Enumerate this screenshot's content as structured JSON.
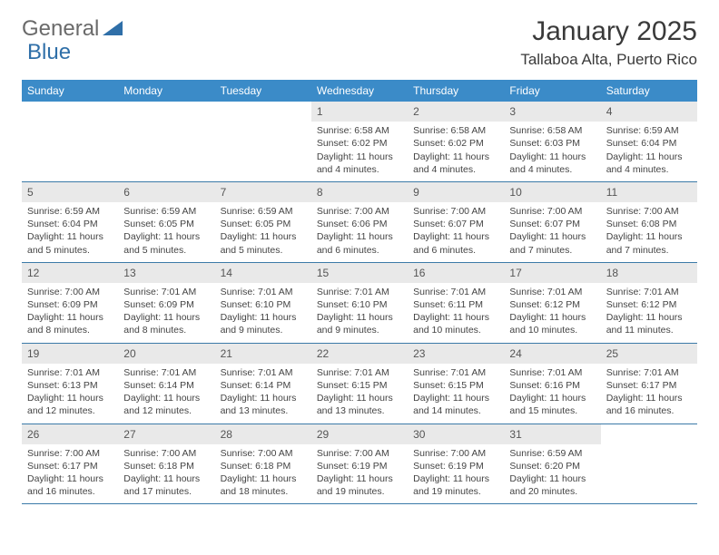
{
  "brand": {
    "part1": "General",
    "part2": "Blue"
  },
  "header": {
    "title": "January 2025",
    "location": "Tallaboa Alta, Puerto Rico"
  },
  "colors": {
    "header_bg": "#3b8bc8",
    "header_text": "#ffffff",
    "daynum_bg": "#e9e9e9",
    "week_border": "#3b7aa8",
    "brand_gray": "#6a6a6a",
    "brand_blue": "#2f6fa8"
  },
  "dow": [
    "Sunday",
    "Monday",
    "Tuesday",
    "Wednesday",
    "Thursday",
    "Friday",
    "Saturday"
  ],
  "weeks": [
    [
      {
        "n": "",
        "sr": "",
        "ss": "",
        "dl": ""
      },
      {
        "n": "",
        "sr": "",
        "ss": "",
        "dl": ""
      },
      {
        "n": "",
        "sr": "",
        "ss": "",
        "dl": ""
      },
      {
        "n": "1",
        "sr": "Sunrise: 6:58 AM",
        "ss": "Sunset: 6:02 PM",
        "dl": "Daylight: 11 hours and 4 minutes."
      },
      {
        "n": "2",
        "sr": "Sunrise: 6:58 AM",
        "ss": "Sunset: 6:02 PM",
        "dl": "Daylight: 11 hours and 4 minutes."
      },
      {
        "n": "3",
        "sr": "Sunrise: 6:58 AM",
        "ss": "Sunset: 6:03 PM",
        "dl": "Daylight: 11 hours and 4 minutes."
      },
      {
        "n": "4",
        "sr": "Sunrise: 6:59 AM",
        "ss": "Sunset: 6:04 PM",
        "dl": "Daylight: 11 hours and 4 minutes."
      }
    ],
    [
      {
        "n": "5",
        "sr": "Sunrise: 6:59 AM",
        "ss": "Sunset: 6:04 PM",
        "dl": "Daylight: 11 hours and 5 minutes."
      },
      {
        "n": "6",
        "sr": "Sunrise: 6:59 AM",
        "ss": "Sunset: 6:05 PM",
        "dl": "Daylight: 11 hours and 5 minutes."
      },
      {
        "n": "7",
        "sr": "Sunrise: 6:59 AM",
        "ss": "Sunset: 6:05 PM",
        "dl": "Daylight: 11 hours and 5 minutes."
      },
      {
        "n": "8",
        "sr": "Sunrise: 7:00 AM",
        "ss": "Sunset: 6:06 PM",
        "dl": "Daylight: 11 hours and 6 minutes."
      },
      {
        "n": "9",
        "sr": "Sunrise: 7:00 AM",
        "ss": "Sunset: 6:07 PM",
        "dl": "Daylight: 11 hours and 6 minutes."
      },
      {
        "n": "10",
        "sr": "Sunrise: 7:00 AM",
        "ss": "Sunset: 6:07 PM",
        "dl": "Daylight: 11 hours and 7 minutes."
      },
      {
        "n": "11",
        "sr": "Sunrise: 7:00 AM",
        "ss": "Sunset: 6:08 PM",
        "dl": "Daylight: 11 hours and 7 minutes."
      }
    ],
    [
      {
        "n": "12",
        "sr": "Sunrise: 7:00 AM",
        "ss": "Sunset: 6:09 PM",
        "dl": "Daylight: 11 hours and 8 minutes."
      },
      {
        "n": "13",
        "sr": "Sunrise: 7:01 AM",
        "ss": "Sunset: 6:09 PM",
        "dl": "Daylight: 11 hours and 8 minutes."
      },
      {
        "n": "14",
        "sr": "Sunrise: 7:01 AM",
        "ss": "Sunset: 6:10 PM",
        "dl": "Daylight: 11 hours and 9 minutes."
      },
      {
        "n": "15",
        "sr": "Sunrise: 7:01 AM",
        "ss": "Sunset: 6:10 PM",
        "dl": "Daylight: 11 hours and 9 minutes."
      },
      {
        "n": "16",
        "sr": "Sunrise: 7:01 AM",
        "ss": "Sunset: 6:11 PM",
        "dl": "Daylight: 11 hours and 10 minutes."
      },
      {
        "n": "17",
        "sr": "Sunrise: 7:01 AM",
        "ss": "Sunset: 6:12 PM",
        "dl": "Daylight: 11 hours and 10 minutes."
      },
      {
        "n": "18",
        "sr": "Sunrise: 7:01 AM",
        "ss": "Sunset: 6:12 PM",
        "dl": "Daylight: 11 hours and 11 minutes."
      }
    ],
    [
      {
        "n": "19",
        "sr": "Sunrise: 7:01 AM",
        "ss": "Sunset: 6:13 PM",
        "dl": "Daylight: 11 hours and 12 minutes."
      },
      {
        "n": "20",
        "sr": "Sunrise: 7:01 AM",
        "ss": "Sunset: 6:14 PM",
        "dl": "Daylight: 11 hours and 12 minutes."
      },
      {
        "n": "21",
        "sr": "Sunrise: 7:01 AM",
        "ss": "Sunset: 6:14 PM",
        "dl": "Daylight: 11 hours and 13 minutes."
      },
      {
        "n": "22",
        "sr": "Sunrise: 7:01 AM",
        "ss": "Sunset: 6:15 PM",
        "dl": "Daylight: 11 hours and 13 minutes."
      },
      {
        "n": "23",
        "sr": "Sunrise: 7:01 AM",
        "ss": "Sunset: 6:15 PM",
        "dl": "Daylight: 11 hours and 14 minutes."
      },
      {
        "n": "24",
        "sr": "Sunrise: 7:01 AM",
        "ss": "Sunset: 6:16 PM",
        "dl": "Daylight: 11 hours and 15 minutes."
      },
      {
        "n": "25",
        "sr": "Sunrise: 7:01 AM",
        "ss": "Sunset: 6:17 PM",
        "dl": "Daylight: 11 hours and 16 minutes."
      }
    ],
    [
      {
        "n": "26",
        "sr": "Sunrise: 7:00 AM",
        "ss": "Sunset: 6:17 PM",
        "dl": "Daylight: 11 hours and 16 minutes."
      },
      {
        "n": "27",
        "sr": "Sunrise: 7:00 AM",
        "ss": "Sunset: 6:18 PM",
        "dl": "Daylight: 11 hours and 17 minutes."
      },
      {
        "n": "28",
        "sr": "Sunrise: 7:00 AM",
        "ss": "Sunset: 6:18 PM",
        "dl": "Daylight: 11 hours and 18 minutes."
      },
      {
        "n": "29",
        "sr": "Sunrise: 7:00 AM",
        "ss": "Sunset: 6:19 PM",
        "dl": "Daylight: 11 hours and 19 minutes."
      },
      {
        "n": "30",
        "sr": "Sunrise: 7:00 AM",
        "ss": "Sunset: 6:19 PM",
        "dl": "Daylight: 11 hours and 19 minutes."
      },
      {
        "n": "31",
        "sr": "Sunrise: 6:59 AM",
        "ss": "Sunset: 6:20 PM",
        "dl": "Daylight: 11 hours and 20 minutes."
      },
      {
        "n": "",
        "sr": "",
        "ss": "",
        "dl": ""
      }
    ]
  ]
}
